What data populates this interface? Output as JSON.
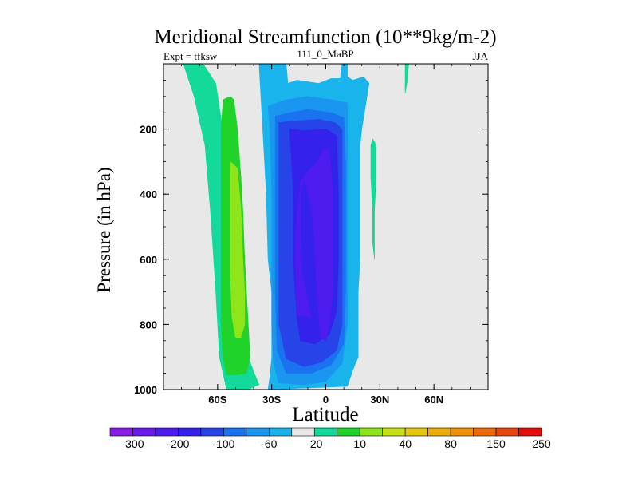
{
  "chart_data": {
    "type": "contour",
    "title": "Meridional Streamfunction (10**9kg/m-2)",
    "subtitle_left": "Expt = tfksw",
    "subtitle_center": "111_0_MaBP",
    "subtitle_right": "JJA",
    "xlabel": "Latitude",
    "ylabel": "Pressure (in hPa)",
    "xlim": [
      -90,
      90
    ],
    "ylim": [
      1000,
      0
    ],
    "x_ticks": [
      {
        "value": -60,
        "label": "60S"
      },
      {
        "value": -30,
        "label": "30S"
      },
      {
        "value": 0,
        "label": "0"
      },
      {
        "value": 30,
        "label": "30N"
      },
      {
        "value": 60,
        "label": "60N"
      }
    ],
    "y_ticks": [
      {
        "value": 200,
        "label": "200"
      },
      {
        "value": 400,
        "label": "400"
      },
      {
        "value": 600,
        "label": "600"
      },
      {
        "value": 800,
        "label": "800"
      },
      {
        "value": 1000,
        "label": "1000"
      }
    ],
    "background_color": "#e8e8e8",
    "colorbar": {
      "colors": [
        "#8a1ee6",
        "#6a1aec",
        "#4e1cef",
        "#3422ec",
        "#2644e8",
        "#1a72f0",
        "#1a96f0",
        "#1ab4ec",
        "#e8e8e8",
        "#13d99a",
        "#21d22b",
        "#8fe41a",
        "#c8e01a",
        "#e6c80f",
        "#ecad0b",
        "#ef9009",
        "#ec6a0a",
        "#e84512",
        "#e60d0d"
      ],
      "levels": [
        "-300",
        "-250",
        "-200",
        "-150",
        "-100",
        "-80",
        "-60",
        "-40",
        "-20",
        "10",
        "20",
        "40",
        "60",
        "80",
        "100",
        "150",
        "200",
        "250"
      ],
      "shown_labels": [
        {
          "after_box": 1,
          "label": "-300"
        },
        {
          "after_box": 3,
          "label": "-200"
        },
        {
          "after_box": 5,
          "label": "-100"
        },
        {
          "after_box": 7,
          "label": "-60"
        },
        {
          "after_box": 9,
          "label": "-20"
        },
        {
          "after_box": 11,
          "label": "10"
        },
        {
          "after_box": 13,
          "label": "40"
        },
        {
          "after_box": 15,
          "label": "80"
        },
        {
          "after_box": 17,
          "label": "150"
        },
        {
          "after_box": 19,
          "label": "250"
        }
      ]
    },
    "regions": [
      {
        "name": "nh-positive-band",
        "value": 10,
        "color": "#13d99a",
        "points": [
          [
            -79,
            0
          ],
          [
            -68,
            0
          ],
          [
            -61,
            60
          ],
          [
            -58,
            170
          ],
          [
            -52,
            350
          ],
          [
            -49,
            520
          ],
          [
            -47,
            700
          ],
          [
            -43,
            900
          ],
          [
            -40,
            945
          ],
          [
            -37,
            985
          ],
          [
            -43,
            1000
          ],
          [
            -55,
            1000
          ],
          [
            -59,
            900
          ],
          [
            -61,
            700
          ],
          [
            -64,
            450
          ],
          [
            -67,
            250
          ],
          [
            -73,
            100
          ]
        ]
      },
      {
        "name": "sh-negative-outer",
        "value": -20,
        "color": "#1ab4ec",
        "points": [
          [
            -37,
            0
          ],
          [
            -22,
            0
          ],
          [
            -21,
            60
          ],
          [
            -16,
            50
          ],
          [
            -4,
            60
          ],
          [
            3,
            45
          ],
          [
            8,
            45
          ],
          [
            9,
            0
          ],
          [
            12,
            0
          ],
          [
            12,
            40
          ],
          [
            15,
            50
          ],
          [
            21,
            40
          ],
          [
            24,
            60
          ],
          [
            20,
            200
          ],
          [
            19,
            250
          ],
          [
            19,
            600
          ],
          [
            18,
            700
          ],
          [
            18,
            800
          ],
          [
            18,
            900
          ],
          [
            15,
            940
          ],
          [
            12,
            990
          ],
          [
            -32,
            1000
          ],
          [
            -31,
            960
          ],
          [
            -30,
            900
          ],
          [
            -30,
            800
          ],
          [
            -30,
            700
          ],
          [
            -32,
            600
          ],
          [
            -33,
            400
          ],
          [
            -35,
            200
          ]
        ]
      },
      {
        "name": "nh-positive-40",
        "value": 40,
        "color": "#21d22b",
        "points": [
          [
            -57,
            110
          ],
          [
            -53,
            100
          ],
          [
            -51,
            110
          ],
          [
            -49,
            200
          ],
          [
            -47,
            350
          ],
          [
            -46,
            450
          ],
          [
            -45,
            600
          ],
          [
            -43,
            800
          ],
          [
            -42,
            900
          ],
          [
            -44,
            950
          ],
          [
            -50,
            955
          ],
          [
            -55,
            955
          ],
          [
            -57,
            900
          ],
          [
            -58,
            800
          ],
          [
            -58,
            600
          ],
          [
            -58,
            400
          ],
          [
            -58,
            200
          ]
        ]
      },
      {
        "name": "nh-positive-80",
        "value": 80,
        "color": "#8fe41a",
        "points": [
          [
            -53,
            300
          ],
          [
            -49,
            320
          ],
          [
            -47,
            450
          ],
          [
            -46,
            600
          ],
          [
            -45,
            700
          ],
          [
            -45,
            800
          ],
          [
            -47,
            840
          ],
          [
            -50,
            840
          ],
          [
            -52,
            780
          ],
          [
            -53,
            640
          ],
          [
            -53,
            460
          ]
        ]
      },
      {
        "name": "sh-negative-40",
        "value": -40,
        "color": "#1a96f0",
        "points": [
          [
            -32,
            130
          ],
          [
            -22,
            110
          ],
          [
            -10,
            100
          ],
          [
            3,
            110
          ],
          [
            12,
            120
          ],
          [
            12,
            200
          ],
          [
            12,
            400
          ],
          [
            12,
            600
          ],
          [
            12,
            800
          ],
          [
            9,
            920
          ],
          [
            0,
            975
          ],
          [
            -12,
            985
          ],
          [
            -26,
            980
          ],
          [
            -29,
            920
          ],
          [
            -30,
            800
          ],
          [
            -30,
            600
          ],
          [
            -30,
            400
          ],
          [
            -31,
            200
          ]
        ]
      },
      {
        "name": "sh-negative-60",
        "value": -60,
        "color": "#1a72f0",
        "points": [
          [
            -28,
            160
          ],
          [
            -20,
            150
          ],
          [
            -10,
            140
          ],
          [
            3,
            150
          ],
          [
            10,
            165
          ],
          [
            11,
            300
          ],
          [
            11,
            500
          ],
          [
            11,
            700
          ],
          [
            10,
            860
          ],
          [
            3,
            925
          ],
          [
            -8,
            950
          ],
          [
            -22,
            950
          ],
          [
            -27,
            880
          ],
          [
            -28,
            700
          ],
          [
            -28,
            500
          ],
          [
            -28,
            300
          ]
        ]
      },
      {
        "name": "sh-negative-80",
        "value": -80,
        "color": "#2644e8",
        "points": [
          [
            -26,
            180
          ],
          [
            -16,
            175
          ],
          [
            -4,
            170
          ],
          [
            5,
            180
          ],
          [
            9,
            200
          ],
          [
            9,
            400
          ],
          [
            9,
            600
          ],
          [
            9,
            800
          ],
          [
            6,
            880
          ],
          [
            -2,
            915
          ],
          [
            -12,
            930
          ],
          [
            -22,
            905
          ],
          [
            -26,
            800
          ],
          [
            -26,
            600
          ],
          [
            -26,
            400
          ]
        ]
      },
      {
        "name": "sh-negative-100",
        "value": -100,
        "color": "#3422ec",
        "points": [
          [
            -20,
            200
          ],
          [
            -12,
            205
          ],
          [
            0,
            200
          ],
          [
            6,
            220
          ],
          [
            7,
            400
          ],
          [
            7,
            600
          ],
          [
            6,
            760
          ],
          [
            2,
            830
          ],
          [
            -6,
            860
          ],
          [
            -14,
            850
          ],
          [
            -16,
            780
          ],
          [
            -17,
            700
          ],
          [
            -18,
            600
          ],
          [
            -18,
            500
          ],
          [
            -18,
            400
          ],
          [
            -19,
            300
          ]
        ]
      },
      {
        "name": "sh-negative-150",
        "value": -150,
        "color": "#4e1cef",
        "points": [
          [
            -1,
            260
          ],
          [
            2,
            265
          ],
          [
            4,
            400
          ],
          [
            4,
            550
          ],
          [
            4,
            700
          ],
          [
            2,
            800
          ],
          [
            0,
            850
          ],
          [
            -3,
            840
          ],
          [
            -5,
            700
          ],
          [
            -6,
            560
          ],
          [
            -8,
            440
          ],
          [
            -12,
            350
          ],
          [
            -14,
            390
          ],
          [
            -14,
            500
          ],
          [
            -13,
            640
          ],
          [
            -8,
            780
          ],
          [
            -16,
            770
          ],
          [
            -17,
            600
          ],
          [
            -16,
            460
          ],
          [
            -14,
            360
          ],
          [
            -10,
            330
          ],
          [
            -5,
            300
          ]
        ]
      },
      {
        "name": "nh-small-patch",
        "value": 10,
        "color": "#13d99a",
        "points": [
          [
            26,
            230
          ],
          [
            28,
            250
          ],
          [
            28,
            300
          ],
          [
            28,
            350
          ],
          [
            27,
            450
          ],
          [
            27,
            550
          ],
          [
            27,
            600
          ],
          [
            26,
            550
          ],
          [
            26,
            450
          ],
          [
            25,
            350
          ],
          [
            25,
            250
          ]
        ]
      },
      {
        "name": "nh-spike",
        "value": 10,
        "color": "#13d99a",
        "points": [
          [
            44,
            0
          ],
          [
            46,
            0
          ],
          [
            45,
            60
          ],
          [
            44,
            90
          ]
        ]
      }
    ]
  }
}
